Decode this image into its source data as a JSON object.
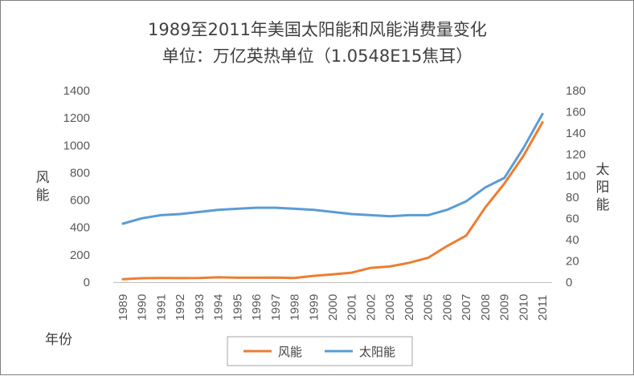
{
  "chart_data": {
    "type": "line",
    "title": "1989至2011年美国太阳能和风能消费量变化",
    "subtitle": "单位：万亿英热单位（1.0548E15焦耳）",
    "xlabel": "年份",
    "ylabel_left": "风能",
    "ylabel_right": "太阳能",
    "categories": [
      "1989",
      "1990",
      "1991",
      "1992",
      "1993",
      "1994",
      "1995",
      "1996",
      "1997",
      "1998",
      "1999",
      "2000",
      "2001",
      "2002",
      "2003",
      "2004",
      "2005",
      "2006",
      "2007",
      "2008",
      "2009",
      "2010",
      "2011"
    ],
    "ylim_left": [
      0,
      1400
    ],
    "ylim_right": [
      0,
      180
    ],
    "yticks_left": [
      "0",
      "200",
      "400",
      "600",
      "800",
      "1000",
      "1200",
      "1400"
    ],
    "yticks_right": [
      "0",
      "20",
      "40",
      "60",
      "80",
      "100",
      "120",
      "140",
      "160",
      "180"
    ],
    "series": [
      {
        "name": "风能",
        "axis": "left",
        "color": "#ed7d31",
        "values": [
          22,
          29,
          31,
          30,
          31,
          36,
          33,
          33,
          34,
          31,
          46,
          57,
          70,
          105,
          115,
          142,
          178,
          264,
          341,
          546,
          721,
          923,
          1168
        ]
      },
      {
        "name": "太阳能",
        "axis": "right",
        "color": "#5b9bd5",
        "values": [
          55,
          60,
          63,
          64,
          66,
          68,
          69,
          70,
          70,
          69,
          68,
          66,
          64,
          63,
          62,
          63,
          63,
          68,
          76,
          89,
          98,
          126,
          158
        ]
      }
    ],
    "grid": false,
    "legend": "bottom"
  }
}
